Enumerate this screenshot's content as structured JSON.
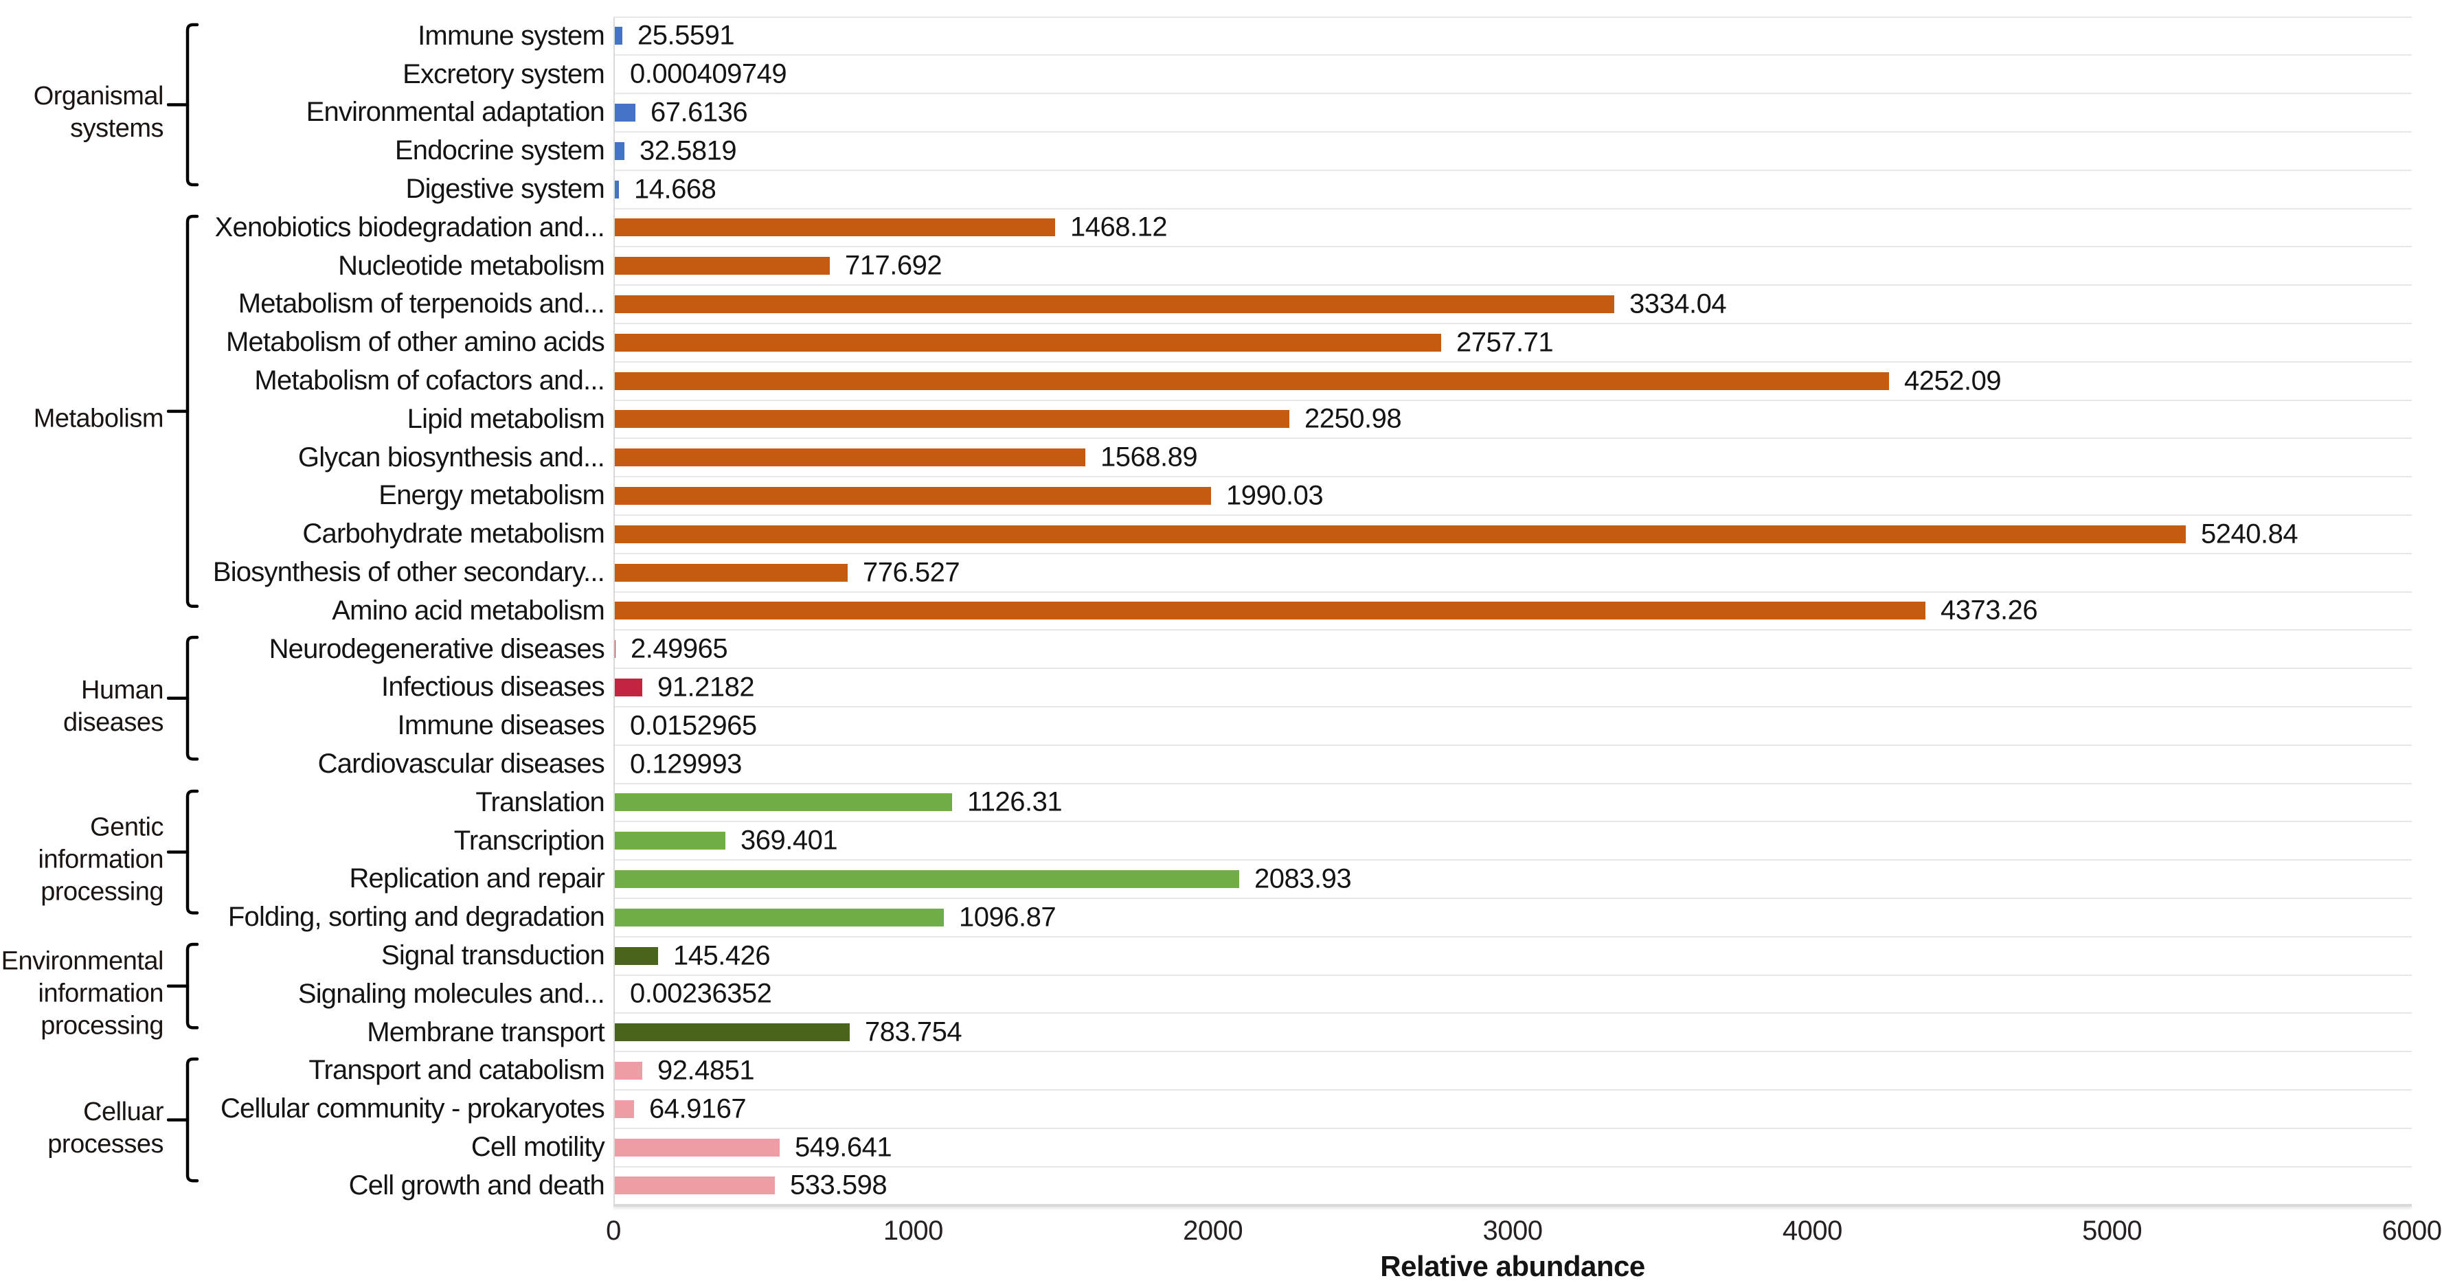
{
  "chart_data": {
    "type": "bar",
    "orientation": "horizontal",
    "xlabel": "Relative abundance",
    "xlim": [
      0,
      6000
    ],
    "x_ticks": [
      "0",
      "1000",
      "2000",
      "3000",
      "4000",
      "5000",
      "6000"
    ],
    "grid": "row-separators",
    "legend": "none",
    "groups": [
      {
        "name": "Organismal systems",
        "lines": [
          "Organismal",
          "systems"
        ],
        "color": "#4472C4",
        "items": [
          {
            "label": "Immune system",
            "value": 25.5591,
            "display": "25.5591"
          },
          {
            "label": "Excretory system",
            "value": 0.000409749,
            "display": "0.000409749"
          },
          {
            "label": "Environmental adaptation",
            "value": 67.6136,
            "display": "67.6136"
          },
          {
            "label": "Endocrine system",
            "value": 32.5819,
            "display": "32.5819"
          },
          {
            "label": "Digestive system",
            "value": 14.668,
            "display": "14.668"
          }
        ]
      },
      {
        "name": "Metabolism",
        "lines": [
          "Metabolism"
        ],
        "color": "#C55A11",
        "items": [
          {
            "label": "Xenobiotics biodegradation and...",
            "value": 1468.12,
            "display": "1468.12"
          },
          {
            "label": "Nucleotide metabolism",
            "value": 717.692,
            "display": "717.692"
          },
          {
            "label": "Metabolism of terpenoids and...",
            "value": 3334.04,
            "display": "3334.04"
          },
          {
            "label": "Metabolism of other amino acids",
            "value": 2757.71,
            "display": "2757.71"
          },
          {
            "label": "Metabolism of cofactors and...",
            "value": 4252.09,
            "display": "4252.09"
          },
          {
            "label": "Lipid metabolism",
            "value": 2250.98,
            "display": "2250.98"
          },
          {
            "label": "Glycan biosynthesis and...",
            "value": 1568.89,
            "display": "1568.89"
          },
          {
            "label": "Energy metabolism",
            "value": 1990.03,
            "display": "1990.03"
          },
          {
            "label": "Carbohydrate metabolism",
            "value": 5240.84,
            "display": "5240.84"
          },
          {
            "label": "Biosynthesis of other secondary...",
            "value": 776.527,
            "display": "776.527"
          },
          {
            "label": "Amino acid metabolism",
            "value": 4373.26,
            "display": "4373.26"
          }
        ]
      },
      {
        "name": "Human diseases",
        "lines": [
          "Human",
          "diseases"
        ],
        "color": "#C32540",
        "items": [
          {
            "label": "Neurodegenerative diseases",
            "value": 2.49965,
            "display": "2.49965"
          },
          {
            "label": "Infectious diseases",
            "value": 91.2182,
            "display": "91.2182"
          },
          {
            "label": "Immune diseases",
            "value": 0.0152965,
            "display": "0.0152965"
          },
          {
            "label": "Cardiovascular diseases",
            "value": 0.129993,
            "display": "0.129993"
          }
        ]
      },
      {
        "name": "Gentic information processing",
        "lines": [
          "Gentic",
          "information",
          "processing"
        ],
        "color": "#70AD47",
        "items": [
          {
            "label": "Translation",
            "value": 1126.31,
            "display": "1126.31"
          },
          {
            "label": "Transcription",
            "value": 369.401,
            "display": "369.401"
          },
          {
            "label": "Replication and repair",
            "value": 2083.93,
            "display": "2083.93"
          },
          {
            "label": "Folding, sorting and degradation",
            "value": 1096.87,
            "display": "1096.87"
          }
        ]
      },
      {
        "name": "Environmental information processing",
        "lines": [
          "Environmental",
          "information",
          "processing"
        ],
        "color": "#4A641E",
        "items": [
          {
            "label": "Signal transduction",
            "value": 145.426,
            "display": "145.426"
          },
          {
            "label": "Signaling molecules and...",
            "value": 0.00236352,
            "display": "0.00236352"
          },
          {
            "label": "Membrane transport",
            "value": 783.754,
            "display": "783.754"
          }
        ]
      },
      {
        "name": "Celluar processes",
        "lines": [
          "Celluar",
          "processes"
        ],
        "color": "#EE9CA6",
        "items": [
          {
            "label": "Transport and catabolism",
            "value": 92.4851,
            "display": "92.4851"
          },
          {
            "label": "Cellular community - prokaryotes",
            "value": 64.9167,
            "display": "64.9167"
          },
          {
            "label": "Cell motility",
            "value": 549.641,
            "display": "549.641"
          },
          {
            "label": "Cell growth and death",
            "value": 533.598,
            "display": "533.598"
          }
        ]
      }
    ]
  },
  "colors": {
    "separator": "#E7E7E7",
    "plot_bottom": "#D9D9D9",
    "axis_line": "#D9D9D9",
    "bracket": "#000000",
    "text": "#141414"
  }
}
